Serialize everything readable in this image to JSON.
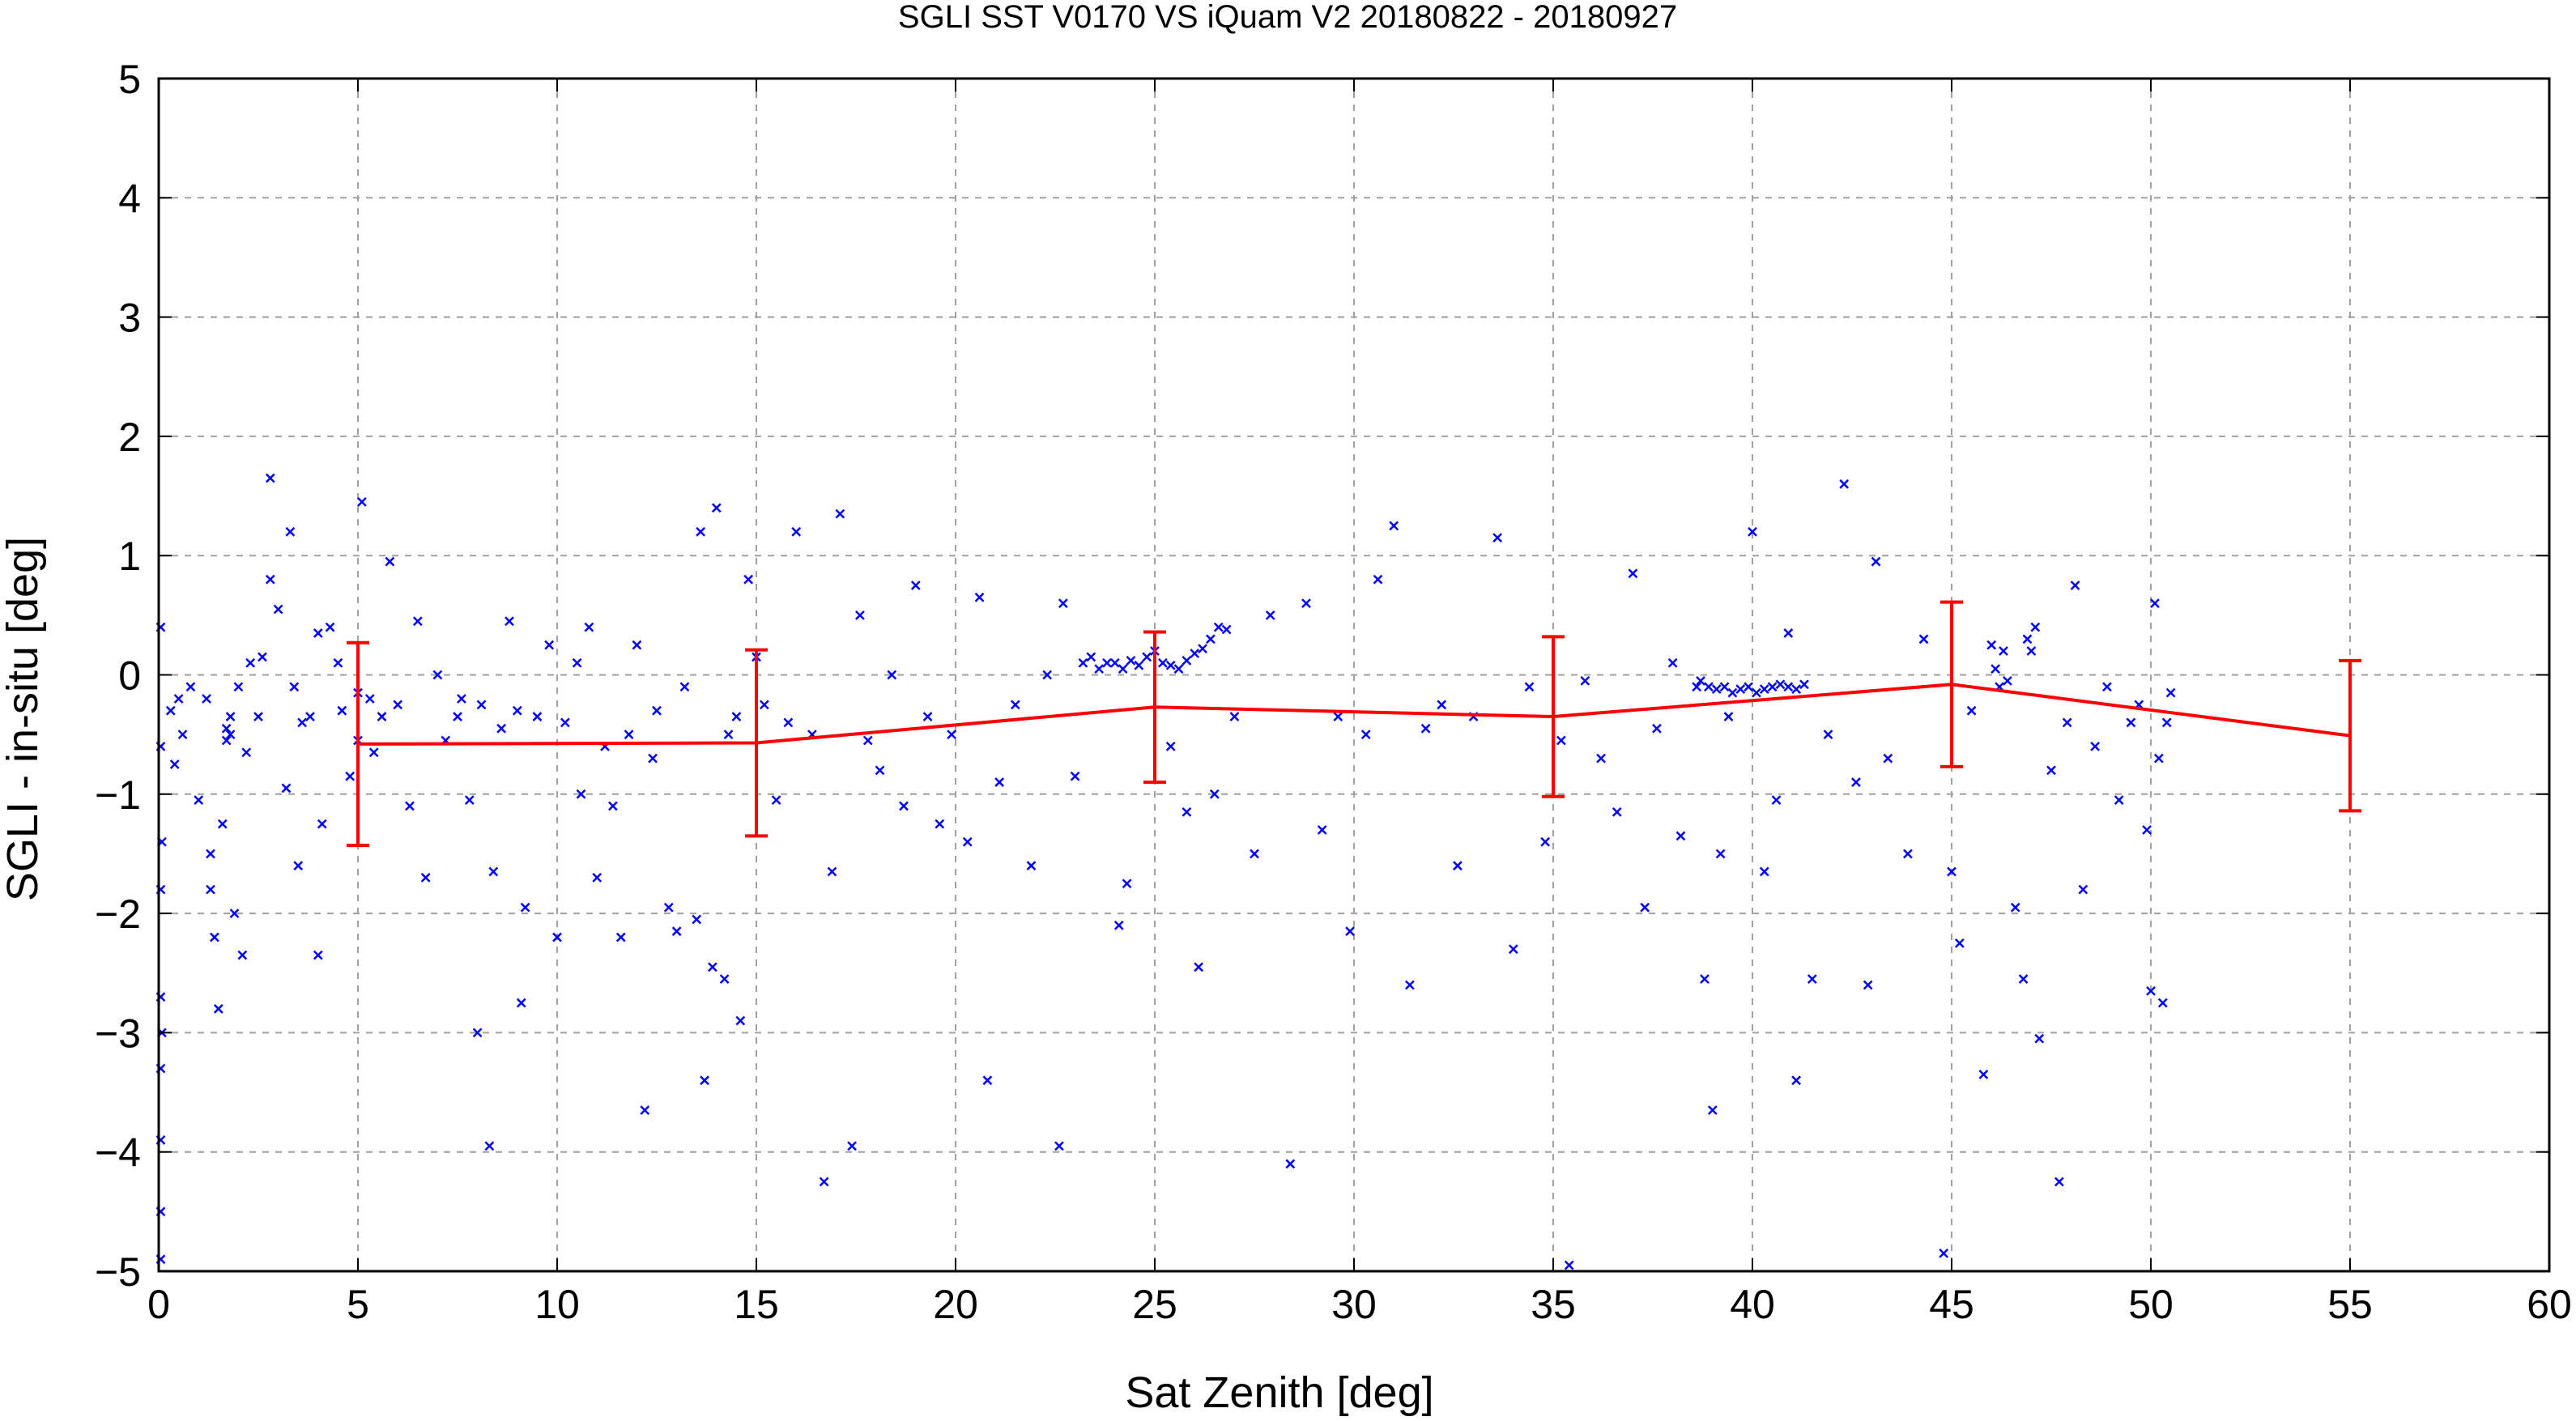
{
  "chart_data": {
    "type": "scatter",
    "title": "SGLI SST V0170 VS iQuam V2 20180822 - 20180927",
    "xlabel": "Sat Zenith [deg]",
    "ylabel": "SGLI - in-situ [deg]",
    "xlim": [
      0,
      60
    ],
    "ylim": [
      -5,
      5
    ],
    "xticks": [
      "0",
      "5",
      "10",
      "15",
      "20",
      "25",
      "30",
      "35",
      "40",
      "45",
      "50",
      "55",
      "60"
    ],
    "yticks": [
      "-5",
      "-4",
      "-3",
      "-2",
      "-1",
      "0",
      "1",
      "2",
      "3",
      "4",
      "5"
    ],
    "grid": true,
    "legend": "none",
    "colors": {
      "scatter": "#0000ff",
      "mean_line": "#ff0000",
      "grid": "#a0a0a0"
    },
    "series": [
      {
        "type": "scatter",
        "marker": "x",
        "points": [
          [
            0.05,
            0.4
          ],
          [
            0.05,
            -0.6
          ],
          [
            0.05,
            -1.8
          ],
          [
            0.05,
            -2.7
          ],
          [
            0.05,
            -3.3
          ],
          [
            0.05,
            -3.9
          ],
          [
            0.05,
            -4.5
          ],
          [
            0.05,
            -4.9
          ],
          [
            0.08,
            -1.4
          ],
          [
            0.08,
            -3.0
          ],
          [
            0.3,
            -0.3
          ],
          [
            0.4,
            -0.75
          ],
          [
            0.5,
            -0.2
          ],
          [
            0.6,
            -0.5
          ],
          [
            0.8,
            -0.1
          ],
          [
            1.0,
            -1.05
          ],
          [
            1.2,
            -0.2
          ],
          [
            1.3,
            -1.5
          ],
          [
            1.3,
            -1.8
          ],
          [
            1.4,
            -2.2
          ],
          [
            1.5,
            -2.8
          ],
          [
            1.6,
            -1.25
          ],
          [
            1.7,
            -0.45
          ],
          [
            1.7,
            -0.55
          ],
          [
            1.8,
            -0.35
          ],
          [
            1.8,
            -0.5
          ],
          [
            1.9,
            -2.0
          ],
          [
            2.0,
            -0.1
          ],
          [
            2.1,
            -2.35
          ],
          [
            2.2,
            -0.65
          ],
          [
            2.3,
            0.1
          ],
          [
            2.5,
            -0.35
          ],
          [
            2.6,
            0.15
          ],
          [
            2.8,
            1.65
          ],
          [
            2.8,
            0.8
          ],
          [
            3.0,
            0.55
          ],
          [
            3.2,
            -0.95
          ],
          [
            3.3,
            1.2
          ],
          [
            3.4,
            -0.1
          ],
          [
            3.5,
            -1.6
          ],
          [
            3.6,
            -0.4
          ],
          [
            3.8,
            -0.35
          ],
          [
            4.0,
            0.35
          ],
          [
            4.0,
            -2.35
          ],
          [
            4.1,
            -1.25
          ],
          [
            4.3,
            0.4
          ],
          [
            4.5,
            0.1
          ],
          [
            4.6,
            -0.3
          ],
          [
            4.8,
            -0.85
          ],
          [
            5.0,
            -0.55
          ],
          [
            5.0,
            -0.15
          ],
          [
            5.1,
            1.45
          ],
          [
            5.3,
            -0.2
          ],
          [
            5.4,
            -0.65
          ],
          [
            5.6,
            -0.35
          ],
          [
            5.8,
            0.95
          ],
          [
            6.0,
            -0.25
          ],
          [
            6.3,
            -1.1
          ],
          [
            6.5,
            0.45
          ],
          [
            6.7,
            -1.7
          ],
          [
            7.0,
            0.0
          ],
          [
            7.2,
            -0.55
          ],
          [
            7.5,
            -0.35
          ],
          [
            7.6,
            -0.2
          ],
          [
            7.8,
            -1.05
          ],
          [
            8.0,
            -3.0
          ],
          [
            8.1,
            -0.25
          ],
          [
            8.3,
            -3.95
          ],
          [
            8.4,
            -1.65
          ],
          [
            8.6,
            -0.45
          ],
          [
            8.8,
            0.45
          ],
          [
            9.0,
            -0.3
          ],
          [
            9.1,
            -2.75
          ],
          [
            9.2,
            -1.95
          ],
          [
            9.5,
            -0.35
          ],
          [
            9.8,
            0.25
          ],
          [
            10.0,
            -2.2
          ],
          [
            10.2,
            -0.4
          ],
          [
            10.5,
            0.1
          ],
          [
            10.6,
            -1.0
          ],
          [
            10.8,
            0.4
          ],
          [
            11.0,
            -1.7
          ],
          [
            11.2,
            -0.6
          ],
          [
            11.4,
            -1.1
          ],
          [
            11.6,
            -2.2
          ],
          [
            11.8,
            -0.5
          ],
          [
            12.0,
            0.25
          ],
          [
            12.2,
            -3.65
          ],
          [
            12.4,
            -0.7
          ],
          [
            12.5,
            -0.3
          ],
          [
            12.8,
            -1.95
          ],
          [
            13.0,
            -2.15
          ],
          [
            13.2,
            -0.1
          ],
          [
            13.5,
            -2.05
          ],
          [
            13.6,
            1.2
          ],
          [
            13.7,
            -3.4
          ],
          [
            13.9,
            -2.45
          ],
          [
            14.0,
            1.4
          ],
          [
            14.2,
            -2.55
          ],
          [
            14.3,
            -0.5
          ],
          [
            14.5,
            -0.35
          ],
          [
            14.6,
            -2.9
          ],
          [
            14.8,
            0.8
          ],
          [
            15.0,
            0.15
          ],
          [
            15.2,
            -0.25
          ],
          [
            15.5,
            -1.05
          ],
          [
            15.8,
            -0.4
          ],
          [
            16.0,
            1.2
          ],
          [
            16.4,
            -0.5
          ],
          [
            16.7,
            -4.25
          ],
          [
            16.9,
            -1.65
          ],
          [
            17.1,
            1.35
          ],
          [
            17.4,
            -3.95
          ],
          [
            17.6,
            0.5
          ],
          [
            17.8,
            -0.55
          ],
          [
            18.1,
            -0.8
          ],
          [
            18.4,
            0.0
          ],
          [
            18.7,
            -1.1
          ],
          [
            19.0,
            0.75
          ],
          [
            19.3,
            -0.35
          ],
          [
            19.6,
            -1.25
          ],
          [
            19.9,
            -0.5
          ],
          [
            20.3,
            -1.4
          ],
          [
            20.6,
            0.65
          ],
          [
            20.8,
            -3.4
          ],
          [
            21.1,
            -0.9
          ],
          [
            21.5,
            -0.25
          ],
          [
            21.9,
            -1.6
          ],
          [
            22.3,
            0.0
          ],
          [
            22.6,
            -3.95
          ],
          [
            22.7,
            0.6
          ],
          [
            23.0,
            -0.85
          ],
          [
            23.2,
            0.1
          ],
          [
            23.4,
            0.15
          ],
          [
            23.6,
            0.05
          ],
          [
            23.8,
            0.1
          ],
          [
            24.0,
            0.1
          ],
          [
            24.2,
            0.05
          ],
          [
            24.4,
            0.12
          ],
          [
            24.6,
            0.08
          ],
          [
            24.8,
            0.15
          ],
          [
            25.0,
            0.2
          ],
          [
            25.2,
            0.1
          ],
          [
            25.4,
            0.08
          ],
          [
            25.6,
            0.05
          ],
          [
            25.8,
            0.12
          ],
          [
            26.0,
            0.18
          ],
          [
            26.2,
            0.22
          ],
          [
            26.4,
            0.3
          ],
          [
            26.6,
            0.4
          ],
          [
            26.8,
            0.38
          ],
          [
            24.1,
            -2.1
          ],
          [
            24.3,
            -1.75
          ],
          [
            25.4,
            -0.6
          ],
          [
            25.8,
            -1.15
          ],
          [
            26.1,
            -2.45
          ],
          [
            26.5,
            -1.0
          ],
          [
            27.0,
            -0.35
          ],
          [
            27.5,
            -1.5
          ],
          [
            27.9,
            0.5
          ],
          [
            28.4,
            -4.1
          ],
          [
            28.8,
            0.6
          ],
          [
            29.2,
            -1.3
          ],
          [
            29.6,
            -0.35
          ],
          [
            29.9,
            -2.15
          ],
          [
            30.3,
            -0.5
          ],
          [
            30.6,
            0.8
          ],
          [
            31.0,
            1.25
          ],
          [
            31.4,
            -2.6
          ],
          [
            31.8,
            -0.45
          ],
          [
            32.2,
            -0.25
          ],
          [
            32.6,
            -1.6
          ],
          [
            33.0,
            -0.35
          ],
          [
            33.6,
            1.15
          ],
          [
            34.0,
            -2.3
          ],
          [
            34.4,
            -0.1
          ],
          [
            34.8,
            -1.4
          ],
          [
            35.2,
            -0.55
          ],
          [
            35.4,
            -4.95
          ],
          [
            35.8,
            -0.05
          ],
          [
            36.2,
            -0.7
          ],
          [
            36.6,
            -1.15
          ],
          [
            37.0,
            0.85
          ],
          [
            37.3,
            -1.95
          ],
          [
            37.6,
            -0.45
          ],
          [
            38.0,
            0.1
          ],
          [
            38.2,
            -1.35
          ],
          [
            38.6,
            -0.1
          ],
          [
            38.8,
            -2.55
          ],
          [
            39.0,
            -3.65
          ],
          [
            39.2,
            -1.5
          ],
          [
            39.4,
            -0.35
          ],
          [
            38.7,
            -0.05
          ],
          [
            38.9,
            -0.1
          ],
          [
            39.1,
            -0.12
          ],
          [
            39.3,
            -0.1
          ],
          [
            39.5,
            -0.15
          ],
          [
            39.7,
            -0.12
          ],
          [
            39.9,
            -0.1
          ],
          [
            40.1,
            -0.15
          ],
          [
            40.3,
            -0.12
          ],
          [
            40.5,
            -0.1
          ],
          [
            40.7,
            -0.08
          ],
          [
            40.9,
            -0.1
          ],
          [
            41.1,
            -0.12
          ],
          [
            41.3,
            -0.08
          ],
          [
            40.0,
            1.2
          ],
          [
            40.3,
            -1.65
          ],
          [
            40.6,
            -1.05
          ],
          [
            40.9,
            0.35
          ],
          [
            41.1,
            -3.4
          ],
          [
            41.5,
            -2.55
          ],
          [
            41.9,
            -0.5
          ],
          [
            42.3,
            1.6
          ],
          [
            42.6,
            -0.9
          ],
          [
            42.9,
            -2.6
          ],
          [
            43.1,
            0.95
          ],
          [
            43.4,
            -0.7
          ],
          [
            43.9,
            -1.5
          ],
          [
            44.3,
            0.3
          ],
          [
            44.8,
            -4.85
          ],
          [
            45.0,
            -1.65
          ],
          [
            45.2,
            -2.25
          ],
          [
            45.5,
            -0.3
          ],
          [
            45.8,
            -3.35
          ],
          [
            46.0,
            0.25
          ],
          [
            46.1,
            0.05
          ],
          [
            46.2,
            -0.1
          ],
          [
            46.3,
            0.2
          ],
          [
            46.4,
            -0.05
          ],
          [
            46.6,
            -1.95
          ],
          [
            46.8,
            -2.55
          ],
          [
            46.9,
            0.3
          ],
          [
            47.0,
            0.2
          ],
          [
            47.1,
            0.4
          ],
          [
            47.2,
            -3.05
          ],
          [
            47.5,
            -0.8
          ],
          [
            47.7,
            -4.25
          ],
          [
            47.9,
            -0.4
          ],
          [
            48.1,
            0.75
          ],
          [
            48.3,
            -1.8
          ],
          [
            48.6,
            -0.6
          ],
          [
            48.9,
            -0.1
          ],
          [
            49.2,
            -1.05
          ],
          [
            49.5,
            -0.4
          ],
          [
            49.7,
            -0.25
          ],
          [
            49.9,
            -1.3
          ],
          [
            50.0,
            -2.65
          ],
          [
            50.1,
            0.6
          ],
          [
            50.2,
            -0.7
          ],
          [
            50.3,
            -2.75
          ],
          [
            50.4,
            -0.4
          ],
          [
            50.5,
            -0.15
          ]
        ]
      },
      {
        "type": "line",
        "with_error_bars": true,
        "x": [
          5,
          15,
          25,
          35,
          45,
          55
        ],
        "y": [
          -0.58,
          -0.57,
          -0.27,
          -0.35,
          -0.08,
          -0.51
        ],
        "err": [
          0.85,
          0.78,
          0.63,
          0.67,
          0.69,
          0.63
        ]
      }
    ]
  }
}
